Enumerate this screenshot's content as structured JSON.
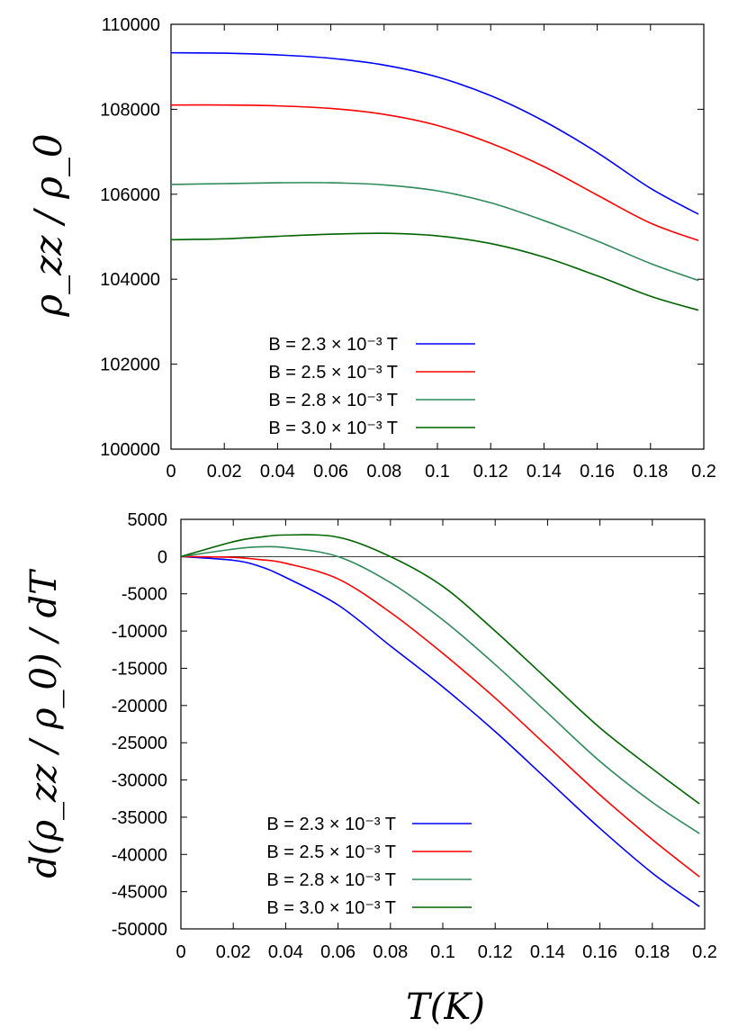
{
  "chart_data": [
    {
      "type": "line",
      "title": "",
      "xlabel": "",
      "ylabel": "ρ_zz / ρ_0",
      "xlim": [
        0,
        0.2
      ],
      "ylim": [
        100000,
        110000
      ],
      "xticks": [
        0,
        0.02,
        0.04,
        0.06,
        0.08,
        0.1,
        0.12,
        0.14,
        0.16,
        0.18,
        0.2
      ],
      "xtick_labels": [
        "0",
        "0.02",
        "0.04",
        "0.06",
        "0.08",
        "0.1",
        "0.12",
        "0.14",
        "0.16",
        "0.18",
        "0.2"
      ],
      "yticks": [
        100000,
        102000,
        104000,
        106000,
        108000,
        110000
      ],
      "ytick_labels": [
        "100000",
        "102000",
        "104000",
        "106000",
        "108000",
        "110000"
      ],
      "legend_position": "bottom-left",
      "grid": false,
      "x": [
        0,
        0.02,
        0.04,
        0.06,
        0.08,
        0.1,
        0.12,
        0.14,
        0.16,
        0.18,
        0.198
      ],
      "series": [
        {
          "name": "B = 2.3 × 10⁻³ T",
          "color": "#0000ff",
          "values": [
            109330,
            109320,
            109280,
            109200,
            109040,
            108760,
            108320,
            107720,
            106980,
            106140,
            105530
          ]
        },
        {
          "name": "B = 2.5 × 10⁻³ T",
          "color": "#ff0000",
          "values": [
            108100,
            108100,
            108080,
            108020,
            107880,
            107620,
            107200,
            106650,
            105980,
            105320,
            104910
          ]
        },
        {
          "name": "B = 2.8 × 10⁻³ T",
          "color": "#2e8b57",
          "values": [
            106230,
            106250,
            106270,
            106270,
            106220,
            106080,
            105800,
            105380,
            104900,
            104370,
            103970
          ]
        },
        {
          "name": "B = 3.0 × 10⁻³ T",
          "color": "#006400",
          "values": [
            104930,
            104950,
            105010,
            105060,
            105080,
            105020,
            104840,
            104520,
            104080,
            103600,
            103270
          ]
        }
      ]
    },
    {
      "type": "line",
      "title": "",
      "xlabel": "T(K)",
      "ylabel": "d(ρ_zz / ρ_0) / dT",
      "xlim": [
        0,
        0.2
      ],
      "ylim": [
        -50000,
        5000
      ],
      "xticks": [
        0,
        0.02,
        0.04,
        0.06,
        0.08,
        0.1,
        0.12,
        0.14,
        0.16,
        0.18,
        0.2
      ],
      "xtick_labels": [
        "0",
        "0.02",
        "0.04",
        "0.06",
        "0.08",
        "0.1",
        "0.12",
        "0.14",
        "0.16",
        "0.18",
        "0.2"
      ],
      "yticks": [
        -50000,
        -45000,
        -40000,
        -35000,
        -30000,
        -25000,
        -20000,
        -15000,
        -10000,
        -5000,
        0,
        5000
      ],
      "ytick_labels": [
        "-50000",
        "-45000",
        "-40000",
        "-35000",
        "-30000",
        "-25000",
        "-20000",
        "-15000",
        "-10000",
        "-5000",
        "0",
        "5000"
      ],
      "zero_line": true,
      "legend_position": "bottom-left",
      "grid": false,
      "x": [
        0,
        0.02,
        0.03,
        0.04,
        0.06,
        0.08,
        0.1,
        0.12,
        0.14,
        0.16,
        0.18,
        0.198
      ],
      "series": [
        {
          "name": "B = 2.3 × 10⁻³ T",
          "color": "#0000ff",
          "values": [
            0,
            -500,
            -1300,
            -2800,
            -6500,
            -12000,
            -17500,
            -23500,
            -30000,
            -36500,
            -42500,
            -47000
          ]
        },
        {
          "name": "B = 2.5 × 10⁻³ T",
          "color": "#ff0000",
          "values": [
            0,
            -100,
            -400,
            -900,
            -3000,
            -7500,
            -13000,
            -19000,
            -25500,
            -32000,
            -38000,
            -43000
          ]
        },
        {
          "name": "B = 2.8 × 10⁻³ T",
          "color": "#2e8b57",
          "values": [
            0,
            1000,
            1300,
            1200,
            0,
            -3500,
            -8500,
            -14500,
            -21000,
            -27500,
            -33000,
            -37200
          ]
        },
        {
          "name": "B = 3.0 × 10⁻³ T",
          "color": "#006400",
          "values": [
            0,
            2000,
            2600,
            2900,
            2600,
            0,
            -4000,
            -10000,
            -16500,
            -23000,
            -28500,
            -33200
          ]
        }
      ]
    }
  ]
}
